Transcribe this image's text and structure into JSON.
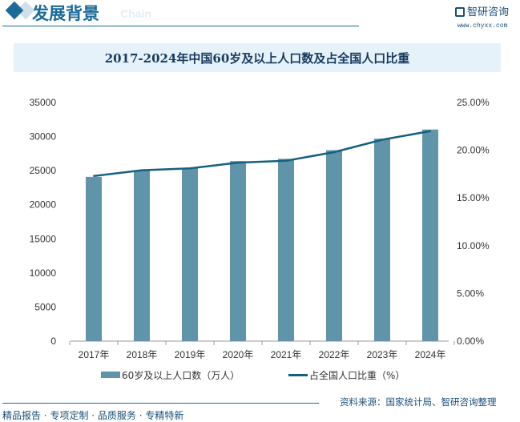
{
  "header": {
    "title": "发展背景",
    "subtitle": "Chain",
    "logo_text": "智研咨询",
    "url": "www.chyxx.com"
  },
  "chart_data": {
    "type": "bar+line",
    "title": "2017-2024年中国60岁及以上人口数及占全国人口比重",
    "categories": [
      "2017年",
      "2018年",
      "2019年",
      "2020年",
      "2021年",
      "2022年",
      "2023年",
      "2024年"
    ],
    "series": [
      {
        "name": "60岁及以上人口数（万人）",
        "type": "bar",
        "axis": "left",
        "color": "#5f94a9",
        "values": [
          24090,
          24949,
          25388,
          26402,
          26736,
          28004,
          29697,
          31031
        ]
      },
      {
        "name": "占全国人口比重（%）",
        "type": "line",
        "axis": "right",
        "color": "#17607f",
        "values": [
          17.3,
          17.9,
          18.1,
          18.7,
          18.9,
          19.8,
          21.1,
          22.0
        ]
      }
    ],
    "y_left": {
      "range": [
        0,
        35000
      ],
      "ticks": [
        "0",
        "5000",
        "10000",
        "15000",
        "20000",
        "25000",
        "30000",
        "35000"
      ]
    },
    "y_right": {
      "range": [
        0,
        25
      ],
      "ticks": [
        "0.00%",
        "5.00%",
        "10.00%",
        "15.00%",
        "20.00%",
        "25.00%"
      ]
    },
    "grid": false,
    "legend": "bottom"
  },
  "source": "资料来源：国家统计局、智研咨询整理",
  "footer": "精品报告 · 专项定制 · 品质服务 · 专精特新"
}
